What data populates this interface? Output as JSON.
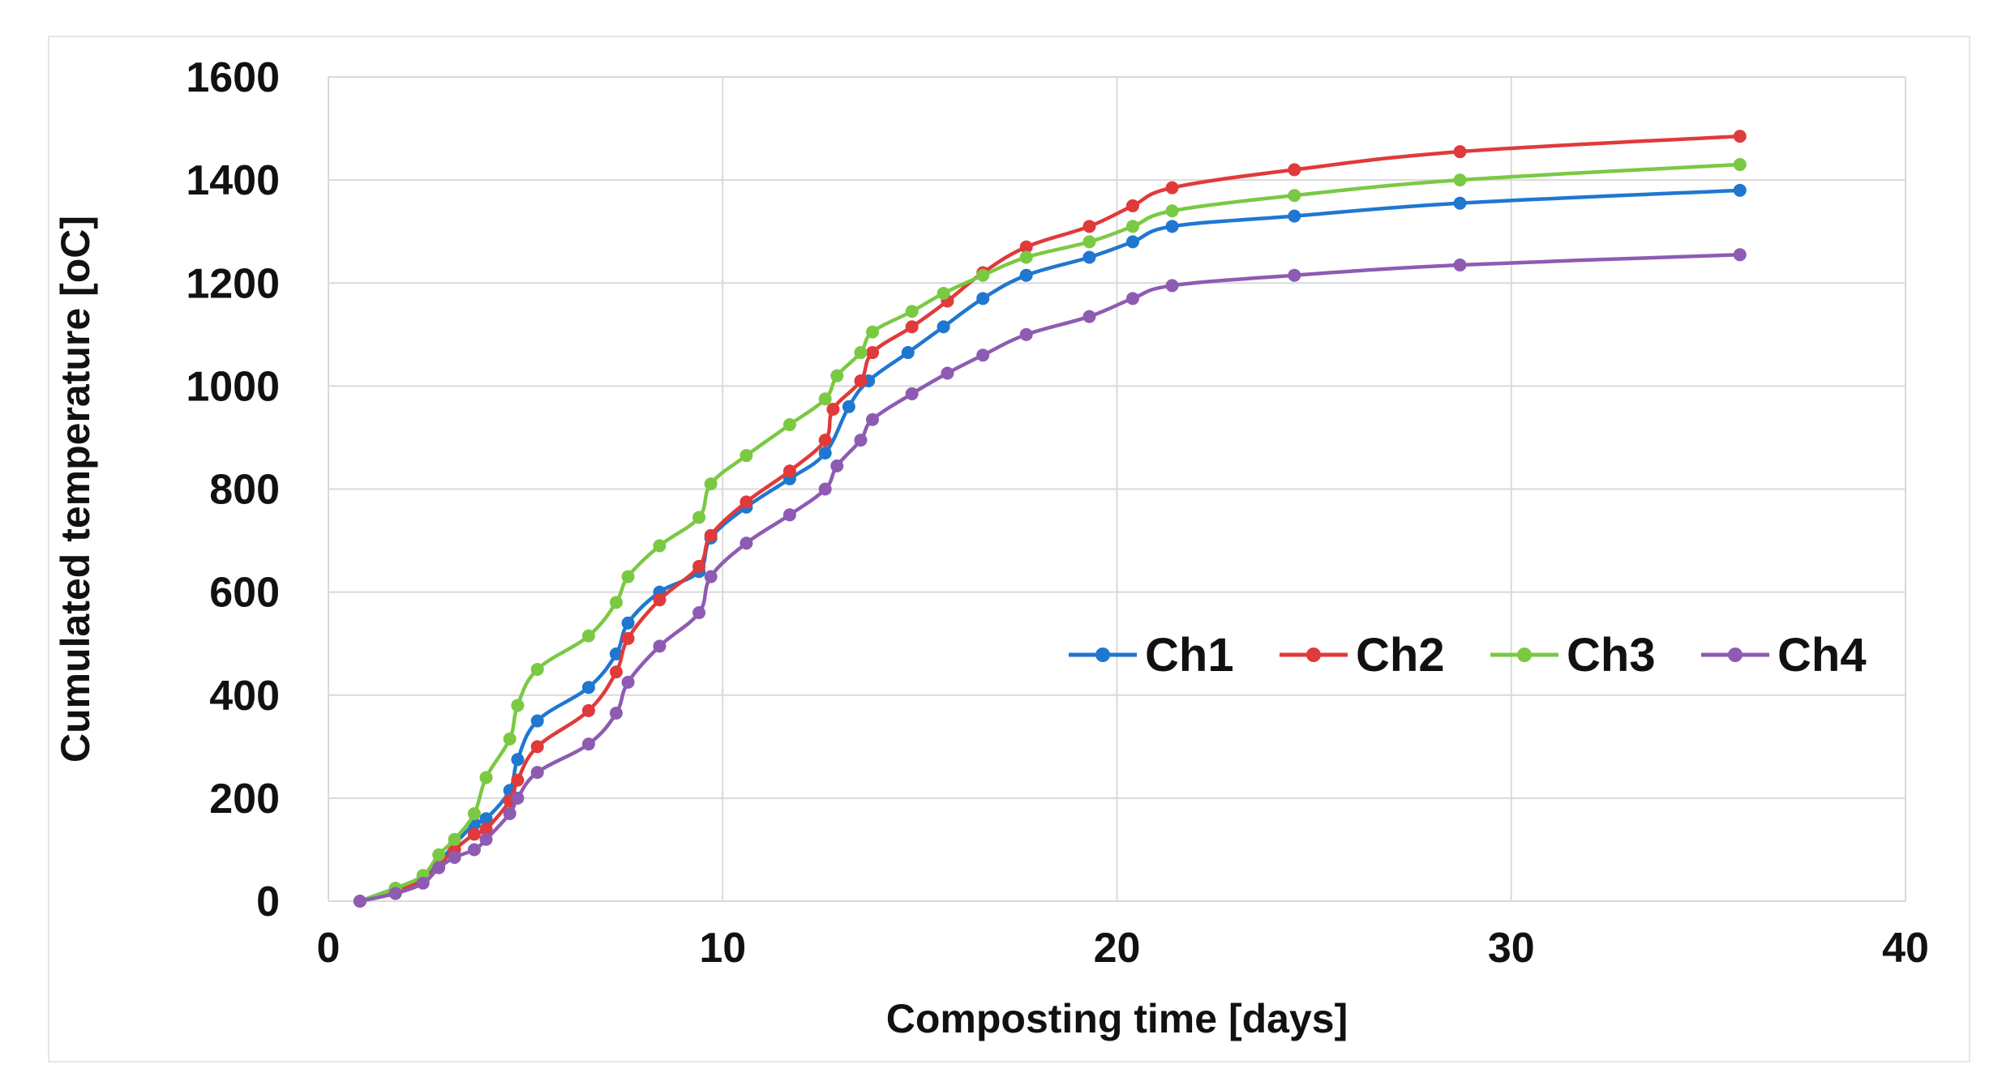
{
  "chart_data": {
    "type": "line",
    "title": "",
    "xlabel": "Composting time [days]",
    "ylabel": "Cumulated temperature [oC]",
    "xlim": [
      0,
      40
    ],
    "ylim": [
      0,
      1600
    ],
    "xticks": [
      0,
      10,
      20,
      30,
      40
    ],
    "yticks": [
      0,
      200,
      400,
      600,
      800,
      1000,
      1200,
      1400,
      1600
    ],
    "grid": true,
    "legend_position": "center-right",
    "series": [
      {
        "name": "Ch1",
        "color": "#1f77d0",
        "x": [
          0.8,
          1.7,
          2.4,
          2.8,
          3.2,
          3.7,
          4.0,
          4.6,
          4.8,
          5.3,
          6.6,
          7.3,
          7.6,
          8.4,
          9.4,
          9.7,
          10.6,
          11.7,
          12.6,
          13.2,
          13.7,
          14.7,
          15.6,
          16.6,
          17.7,
          19.3,
          20.4,
          21.4,
          24.5,
          28.7,
          35.8
        ],
        "y": [
          0,
          25,
          45,
          75,
          110,
          150,
          160,
          215,
          275,
          350,
          415,
          480,
          540,
          600,
          640,
          705,
          765,
          820,
          870,
          960,
          1010,
          1065,
          1115,
          1170,
          1215,
          1250,
          1280,
          1310,
          1330,
          1355,
          1380
        ]
      },
      {
        "name": "Ch2",
        "color": "#e03a3a",
        "x": [
          0.8,
          1.7,
          2.4,
          2.8,
          3.2,
          3.7,
          4.0,
          4.6,
          4.8,
          5.3,
          6.6,
          7.3,
          7.6,
          8.4,
          9.4,
          9.7,
          10.6,
          11.7,
          12.6,
          12.8,
          13.5,
          13.8,
          14.8,
          15.7,
          16.6,
          17.7,
          19.3,
          20.4,
          21.4,
          24.5,
          28.7,
          35.8
        ],
        "y": [
          0,
          20,
          40,
          70,
          100,
          130,
          140,
          195,
          235,
          300,
          370,
          445,
          510,
          585,
          650,
          710,
          775,
          835,
          895,
          955,
          1010,
          1065,
          1115,
          1165,
          1220,
          1270,
          1310,
          1350,
          1385,
          1420,
          1455,
          1485
        ]
      },
      {
        "name": "Ch3",
        "color": "#7ac943",
        "x": [
          0.8,
          1.7,
          2.4,
          2.8,
          3.2,
          3.7,
          4.0,
          4.6,
          4.8,
          5.3,
          6.6,
          7.3,
          7.6,
          8.4,
          9.4,
          9.7,
          10.6,
          11.7,
          12.6,
          12.9,
          13.5,
          13.8,
          14.8,
          15.6,
          16.6,
          17.7,
          19.3,
          20.4,
          21.4,
          24.5,
          28.7,
          35.8
        ],
        "y": [
          0,
          25,
          50,
          90,
          120,
          170,
          240,
          315,
          380,
          450,
          515,
          580,
          630,
          690,
          745,
          810,
          865,
          925,
          975,
          1020,
          1065,
          1105,
          1145,
          1180,
          1215,
          1250,
          1280,
          1310,
          1340,
          1370,
          1400,
          1430
        ]
      },
      {
        "name": "Ch4",
        "color": "#8e5bb3",
        "x": [
          0.8,
          1.7,
          2.4,
          2.8,
          3.2,
          3.7,
          4.0,
          4.6,
          4.8,
          5.3,
          6.6,
          7.3,
          7.6,
          8.4,
          9.4,
          9.7,
          10.6,
          11.7,
          12.6,
          12.9,
          13.5,
          13.8,
          14.8,
          15.7,
          16.6,
          17.7,
          19.3,
          20.4,
          21.4,
          24.5,
          28.7,
          35.8
        ],
        "y": [
          0,
          15,
          35,
          65,
          85,
          100,
          120,
          170,
          200,
          250,
          305,
          365,
          425,
          495,
          560,
          630,
          695,
          750,
          800,
          845,
          895,
          935,
          985,
          1025,
          1060,
          1100,
          1135,
          1170,
          1195,
          1215,
          1235,
          1255
        ]
      }
    ]
  }
}
